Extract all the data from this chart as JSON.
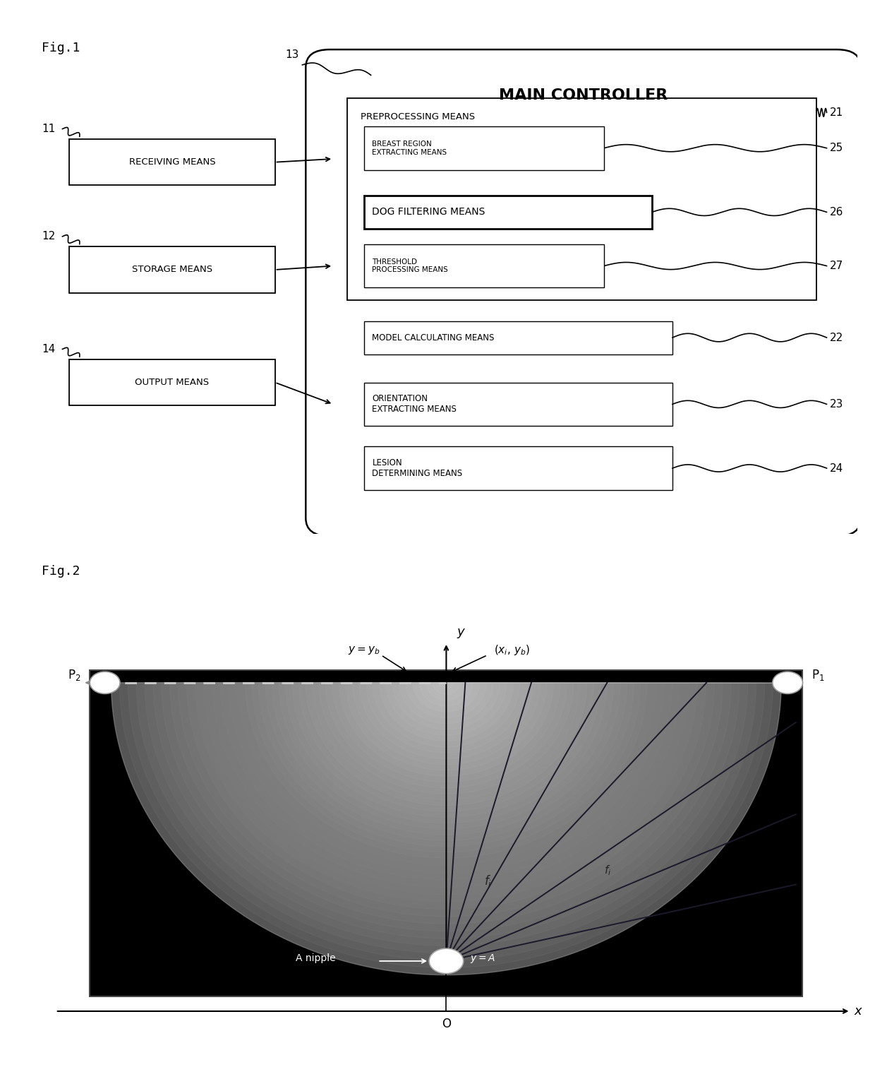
{
  "fig_label1": "Fig.1",
  "fig_label2": "Fig.2",
  "main_controller_title": "MAIN CONTROLLER",
  "left_boxes": [
    {
      "label": "RECEIVING MEANS",
      "id": "11"
    },
    {
      "label": "STORAGE MEANS",
      "id": "12"
    },
    {
      "label": "OUTPUT MEANS",
      "id": "14"
    }
  ],
  "main_controller_id": "13",
  "preprocessing_label": "PREPROCESSING MEANS",
  "preprocessing_id": "21",
  "inner_boxes": [
    {
      "label": "BREAST REGION\nEXTRACTING MEANS",
      "id": "25"
    },
    {
      "label": "DOG FILTERING MEANS",
      "id": "26"
    },
    {
      "label": "THRESHOLD\nPROCESSING MEANS",
      "id": "27"
    }
  ],
  "right_boxes": [
    {
      "label": "MODEL CALCULATING MEANS",
      "id": "22"
    },
    {
      "label": "ORIENTATION\nEXTRACTING MEANS",
      "id": "23"
    },
    {
      "label": "LESION\nDETERMINING MEANS",
      "id": "24"
    }
  ],
  "bg_color": "#ffffff",
  "box_color": "#ffffff",
  "line_color": "#000000"
}
